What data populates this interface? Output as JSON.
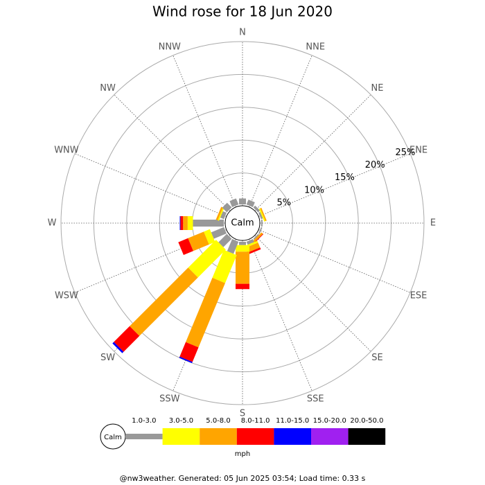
{
  "chart_data": {
    "type": "wind_rose",
    "title": "Wind rose for 18 Jun 2020",
    "directions": [
      "N",
      "NNE",
      "NE",
      "ENE",
      "E",
      "ESE",
      "SE",
      "SSE",
      "S",
      "SSW",
      "SW",
      "WSW",
      "W",
      "WNW",
      "NW",
      "NNW"
    ],
    "rlim": [
      0,
      25
    ],
    "rticks": [
      {
        "value": 5,
        "label": "5%"
      },
      {
        "value": 10,
        "label": "10%"
      },
      {
        "value": 15,
        "label": "15%"
      },
      {
        "value": 20,
        "label": "20%"
      },
      {
        "value": 25,
        "label": "25%"
      }
    ],
    "calm_label": "Calm",
    "unit": "mph",
    "series": [
      {
        "name": "1.0-3.0",
        "color": "#999999",
        "values": [
          0.9,
          0.8,
          0.4,
          0.3,
          0.2,
          0.2,
          0.2,
          0.5,
          0.5,
          2.0,
          1.8,
          2.1,
          4.7,
          0.6,
          1.0,
          1.0
        ]
      },
      {
        "name": "3.0-5.0",
        "color": "#ffff00",
        "values": [
          0,
          0,
          0,
          0.2,
          0,
          0,
          0,
          0.3,
          1.0,
          4.6,
          6.0,
          1.0,
          0.8,
          0.2,
          0,
          0
        ]
      },
      {
        "name": "5.0-8.0",
        "color": "#ffa500",
        "values": [
          0,
          0,
          0,
          0.2,
          0,
          0,
          0.3,
          0.8,
          4.9,
          10.6,
          12.6,
          2.6,
          0.7,
          0.3,
          0,
          0
        ]
      },
      {
        "name": "8.0-11.0",
        "color": "#ff0000",
        "values": [
          0,
          0,
          0,
          0,
          0,
          0,
          0.1,
          0.3,
          0.8,
          2.4,
          3.4,
          1.6,
          0.4,
          0,
          0,
          0
        ]
      },
      {
        "name": "11.0-15.0",
        "color": "#0000ff",
        "values": [
          0,
          0,
          0,
          0,
          0,
          0,
          0,
          0,
          0,
          0.2,
          0.3,
          0,
          0.1,
          0,
          0,
          0
        ]
      },
      {
        "name": "15.0-20.0",
        "color": "#a020f0",
        "values": [
          0,
          0,
          0,
          0,
          0,
          0,
          0,
          0,
          0,
          0,
          0,
          0,
          0,
          0,
          0,
          0
        ]
      },
      {
        "name": "20.0-50.0",
        "color": "#000000",
        "values": [
          0,
          0,
          0,
          0,
          0,
          0,
          0,
          0,
          0,
          0,
          0,
          0,
          0,
          0,
          0,
          0
        ]
      }
    ],
    "footer": "@nw3weather. Generated: 05 Jun 2025 03:54; Load time: 0.33 s"
  }
}
